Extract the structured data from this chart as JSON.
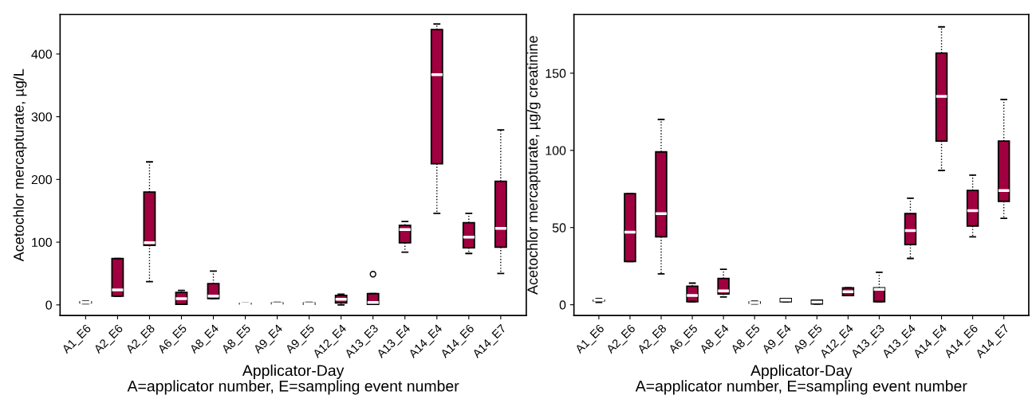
{
  "chart_data": [
    {
      "type": "box",
      "ylabel": "Acetochlor mercapturate, µg/L",
      "xlabel": "Applicator-Day\nA=applicator number, E=sampling event number",
      "color": "#a0003f",
      "categories": [
        "A1_E6",
        "A2_E6",
        "A2_E8",
        "A6_E5",
        "A8_E4",
        "A8_E5",
        "A9_E4",
        "A9_E5",
        "A12_E4",
        "A13_E3",
        "A13_E4",
        "A14_E4",
        "A14_E6",
        "A14_E7"
      ],
      "boxes": [
        {
          "low": 2,
          "q1": 3,
          "median": 4,
          "q3": 5,
          "high": 6
        },
        {
          "low": 14,
          "q1": 14,
          "median": 24,
          "q3": 74,
          "high": 74
        },
        {
          "low": 37,
          "q1": 95,
          "median": 99,
          "q3": 180,
          "high": 228
        },
        {
          "low": 1,
          "q1": 1,
          "median": 10,
          "q3": 20,
          "high": 23
        },
        {
          "low": 10,
          "q1": 10,
          "median": 14,
          "q3": 34,
          "high": 54
        },
        {
          "low": 1,
          "q1": 1.5,
          "median": 2,
          "q3": 2.5,
          "high": 3
        },
        {
          "low": 1,
          "q1": 2,
          "median": 2,
          "q3": 3,
          "high": 4
        },
        {
          "low": 1,
          "q1": 1,
          "median": 2,
          "q3": 3,
          "high": 4
        },
        {
          "low": 0,
          "q1": 3,
          "median": 9,
          "q3": 15,
          "high": 17
        },
        {
          "low": 1,
          "q1": 1,
          "median": 4,
          "q3": 18,
          "high": 18,
          "outliers": [
            49
          ]
        },
        {
          "low": 84,
          "q1": 99,
          "median": 120,
          "q3": 127,
          "high": 133
        },
        {
          "low": 146,
          "q1": 225,
          "median": 367,
          "q3": 439,
          "high": 448
        },
        {
          "low": 82,
          "q1": 91,
          "median": 108,
          "q3": 131,
          "high": 146
        },
        {
          "low": 50,
          "q1": 92,
          "median": 122,
          "q3": 197,
          "high": 279
        }
      ],
      "ylim": [
        -17,
        463
      ],
      "yticks": [
        0,
        100,
        200,
        300,
        400
      ],
      "grid": false,
      "legend": false
    },
    {
      "type": "box",
      "ylabel": "Acetochlor mercapturate, µg/g creatinine",
      "xlabel": "Applicator-Day\nA=applicator number, E=sampling event number",
      "color": "#a0003f",
      "categories": [
        "A1_E6",
        "A2_E6",
        "A2_E8",
        "A6_E5",
        "A8_E4",
        "A8_E5",
        "A9_E4",
        "A9_E5",
        "A12_E4",
        "A13_E3",
        "A13_E4",
        "A14_E4",
        "A14_E6",
        "A14_E7"
      ],
      "boxes": [
        {
          "low": 1.5,
          "q1": 2.5,
          "median": 3,
          "q3": 3,
          "high": 4
        },
        {
          "low": 28,
          "q1": 28,
          "median": 47,
          "q3": 72,
          "high": 72
        },
        {
          "low": 20,
          "q1": 44,
          "median": 59,
          "q3": 99,
          "high": 120
        },
        {
          "low": 2,
          "q1": 2,
          "median": 6,
          "q3": 12,
          "high": 14
        },
        {
          "low": 5,
          "q1": 7,
          "median": 9,
          "q3": 17,
          "high": 23
        },
        {
          "low": 0.5,
          "q1": 1,
          "median": 1.4,
          "q3": 1.8,
          "high": 2.3
        },
        {
          "low": 2,
          "q1": 2,
          "median": 3,
          "q3": 4,
          "high": 4
        },
        {
          "low": 0.5,
          "q1": 0.5,
          "median": 1.7,
          "q3": 3,
          "high": 3
        },
        {
          "low": 6,
          "q1": 6,
          "median": 8.5,
          "q3": 11,
          "high": 11
        },
        {
          "low": 2,
          "q1": 2,
          "median": 10,
          "q3": 11,
          "high": 21
        },
        {
          "low": 30,
          "q1": 39,
          "median": 48,
          "q3": 59,
          "high": 69
        },
        {
          "low": 87,
          "q1": 106,
          "median": 135,
          "q3": 163,
          "high": 180
        },
        {
          "low": 44,
          "q1": 51,
          "median": 61,
          "q3": 74,
          "high": 84
        },
        {
          "low": 56,
          "q1": 67,
          "median": 74,
          "q3": 106,
          "high": 133
        }
      ],
      "ylim": [
        -7,
        188
      ],
      "yticks": [
        0,
        50,
        100,
        150
      ],
      "grid": false,
      "legend": false
    }
  ]
}
